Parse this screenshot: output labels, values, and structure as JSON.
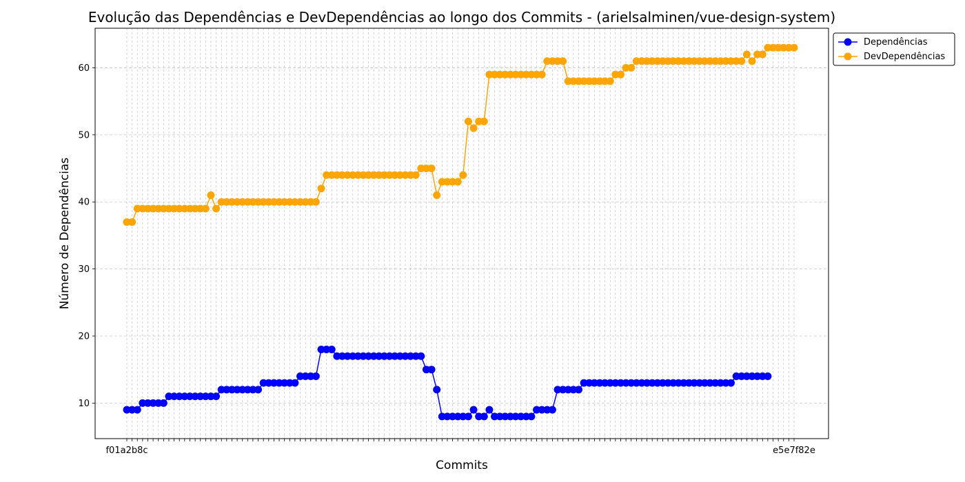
{
  "chart_data": {
    "type": "line",
    "title": "Evolução das Dependências e DevDependências ao longo dos Commits - (arielsalminen/vue-design-system)",
    "xlabel": "Commits",
    "ylabel": "Número de Dependências",
    "ylim": [
      4.7,
      65.9
    ],
    "yticks": [
      10,
      20,
      30,
      40,
      50,
      60
    ],
    "grid": true,
    "legend": "top-right-outside",
    "x_first_label": "f01a2b8c",
    "x_last_label": "e5e7f82e",
    "series": [
      {
        "name": "Dependências",
        "color": "#0000ff",
        "values": [
          9,
          9,
          9,
          10,
          10,
          10,
          10,
          10,
          11,
          11,
          11,
          11,
          11,
          11,
          11,
          11,
          11,
          11,
          12,
          12,
          12,
          12,
          12,
          12,
          12,
          12,
          13,
          13,
          13,
          13,
          13,
          13,
          13,
          14,
          14,
          14,
          14,
          18,
          18,
          18,
          17,
          17,
          17,
          17,
          17,
          17,
          17,
          17,
          17,
          17,
          17,
          17,
          17,
          17,
          17,
          17,
          17,
          15,
          15,
          12,
          8,
          8,
          8,
          8,
          8,
          8,
          9,
          8,
          8,
          9,
          8,
          8,
          8,
          8,
          8,
          8,
          8,
          8,
          9,
          9,
          9,
          9,
          12,
          12,
          12,
          12,
          12,
          13,
          13,
          13,
          13,
          13,
          13,
          13,
          13,
          13,
          13,
          13,
          13,
          13,
          13,
          13,
          13,
          13,
          13,
          13,
          13,
          13,
          13,
          13,
          13,
          13,
          13,
          13,
          13,
          13,
          14,
          14,
          14,
          14,
          14,
          14,
          14
        ]
      },
      {
        "name": "DevDependências",
        "color": "#ffa500",
        "values": [
          37,
          37,
          39,
          39,
          39,
          39,
          39,
          39,
          39,
          39,
          39,
          39,
          39,
          39,
          39,
          39,
          41,
          39,
          40,
          40,
          40,
          40,
          40,
          40,
          40,
          40,
          40,
          40,
          40,
          40,
          40,
          40,
          40,
          40,
          40,
          40,
          40,
          42,
          44,
          44,
          44,
          44,
          44,
          44,
          44,
          44,
          44,
          44,
          44,
          44,
          44,
          44,
          44,
          44,
          44,
          44,
          45,
          45,
          45,
          41,
          43,
          43,
          43,
          43,
          44,
          52,
          51,
          52,
          52,
          59,
          59,
          59,
          59,
          59,
          59,
          59,
          59,
          59,
          59,
          59,
          61,
          61,
          61,
          61,
          58,
          58,
          58,
          58,
          58,
          58,
          58,
          58,
          58,
          59,
          59,
          60,
          60,
          61,
          61,
          61,
          61,
          61,
          61,
          61,
          61,
          61,
          61,
          61,
          61,
          61,
          61,
          61,
          61,
          61,
          61,
          61,
          61,
          61,
          62,
          61,
          62,
          62,
          63,
          63,
          63,
          63,
          63,
          63
        ]
      }
    ]
  }
}
